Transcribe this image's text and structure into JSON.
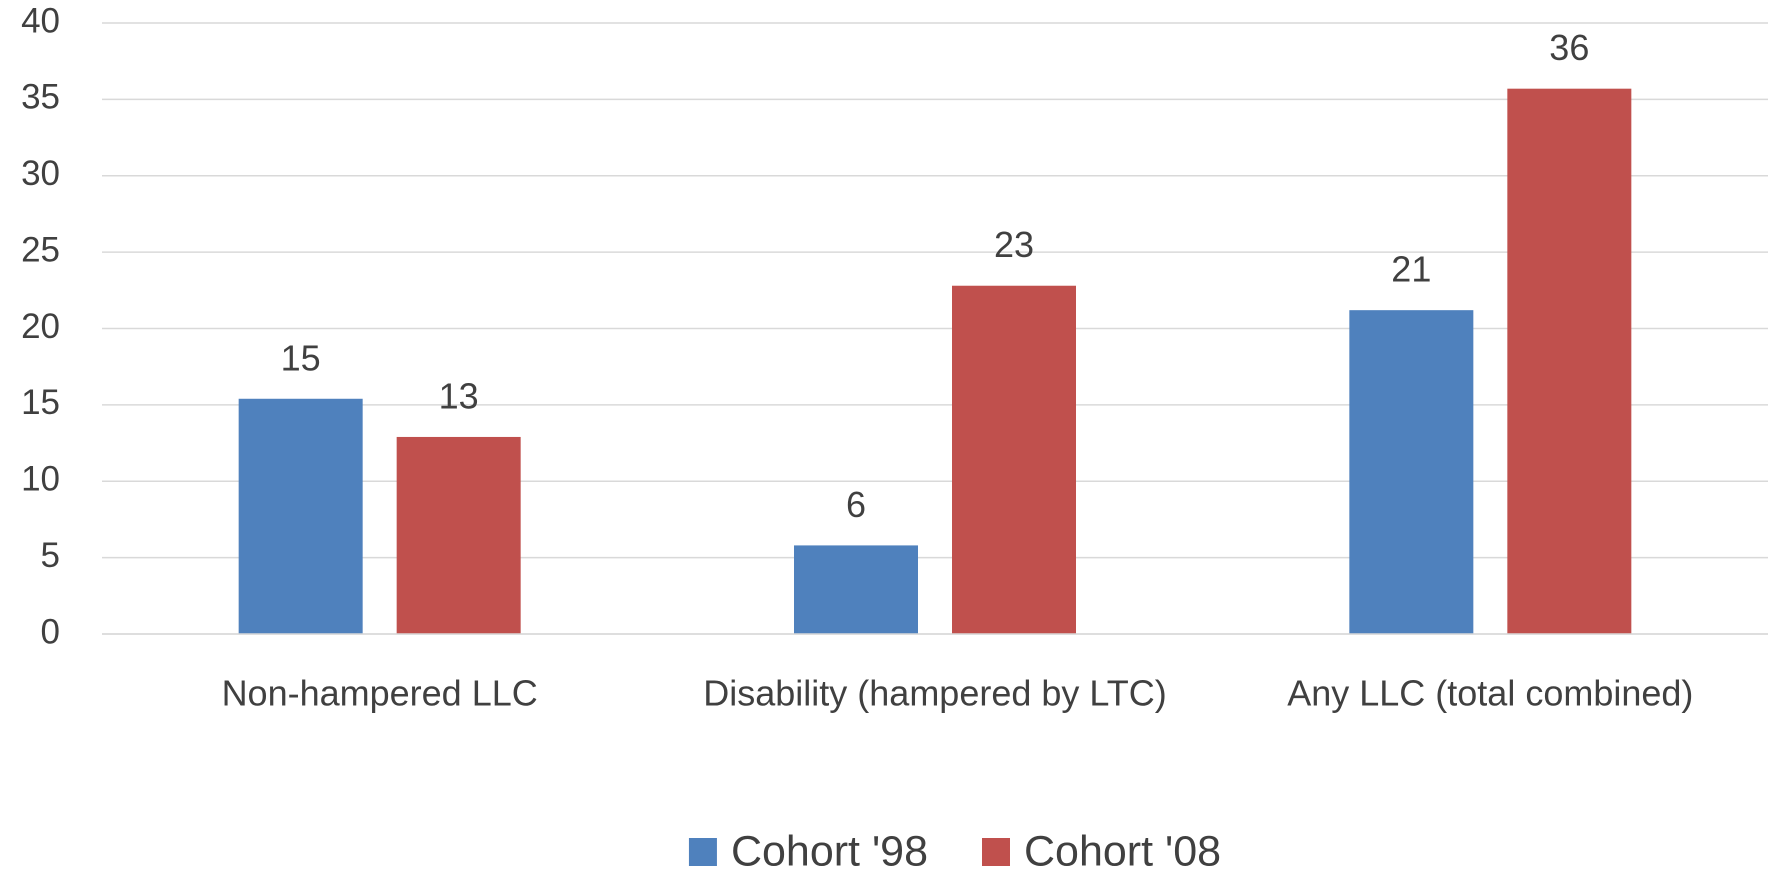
{
  "chart_data": {
    "type": "bar",
    "categories": [
      "Non-hampered LLC",
      "Disability (hampered by LTC)",
      "Any LLC (total combined)"
    ],
    "series": [
      {
        "name": "Cohort '98",
        "color": "#4f81bd",
        "values": [
          15.4,
          5.8,
          21.2
        ],
        "value_labels": [
          "15",
          "6",
          "21"
        ]
      },
      {
        "name": "Cohort '08",
        "color": "#c0504d",
        "values": [
          12.9,
          22.8,
          35.7
        ],
        "value_labels": [
          "13",
          "23",
          "36"
        ]
      }
    ],
    "ylim": [
      0,
      40
    ],
    "yticks": [
      0,
      5,
      10,
      15,
      20,
      25,
      30,
      35,
      40
    ],
    "grid": true,
    "legend": "bottom"
  }
}
